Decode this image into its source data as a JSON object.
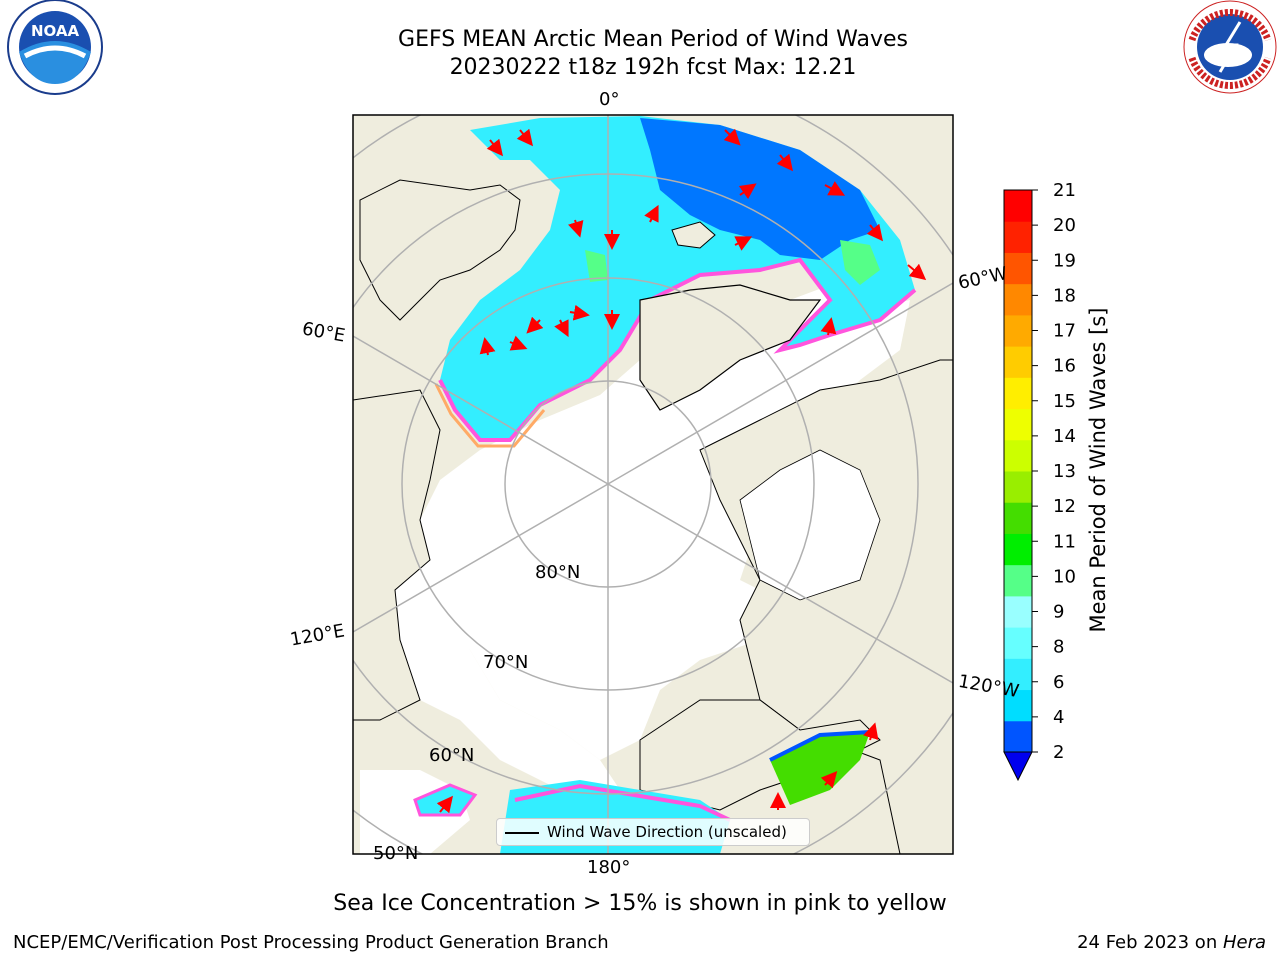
{
  "header": {
    "title_line1": "GEFS MEAN Arctic Mean Period of Wind Waves",
    "title_line2": "20230222 t18z 192h fcst   Max: 12.21"
  },
  "logos": {
    "left_text": "NOAA",
    "right_text": "NATIONAL WEATHER SERVICE"
  },
  "map": {
    "longitude_labels": [
      "0°",
      "60°W",
      "120°W",
      "180°",
      "120°E",
      "60°E"
    ],
    "latitude_labels": [
      "80°N",
      "70°N",
      "60°N",
      "50°N"
    ],
    "land_color": "#efedde",
    "ice_color": "#ffffff",
    "arrow_color": "#ff0000",
    "legend_label": "Wind Wave Direction (unscaled)"
  },
  "colorbar": {
    "title": "Mean Period of Wind Waves [s]",
    "ticks": [
      "2",
      "4",
      "6",
      "8",
      "9",
      "10",
      "11",
      "12",
      "13",
      "14",
      "15",
      "16",
      "17",
      "18",
      "19",
      "20",
      "21"
    ],
    "colors": [
      "#0055ff",
      "#00ddff",
      "#33eeff",
      "#66ffff",
      "#99ffff",
      "#55ff88",
      "#00ee00",
      "#44dd00",
      "#99ee00",
      "#ccff00",
      "#eeff00",
      "#ffee00",
      "#ffcc00",
      "#ffaa00",
      "#ff8800",
      "#ff5500",
      "#ff2200",
      "#ff0000"
    ],
    "extend_color": "#0000ee"
  },
  "note": "Sea Ice Concentration > 15% is shown in pink to yellow",
  "footer": {
    "left": "NCEP/EMC/Verification Post Processing Product Generation Branch",
    "right_prefix": "24 Feb 2023 on ",
    "right_machine": "Hera"
  }
}
